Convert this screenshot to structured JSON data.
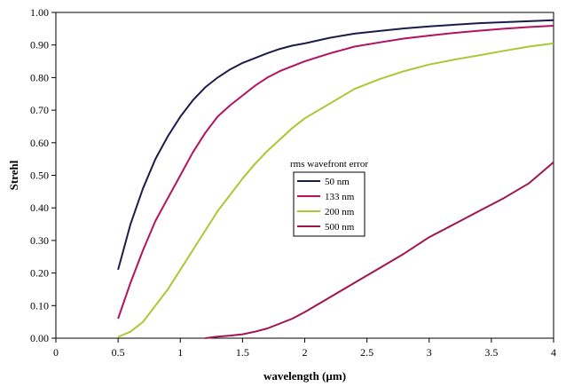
{
  "chart_data": {
    "type": "line",
    "xlabel": "wavelength (µm)",
    "ylabel": "Strehl",
    "xlim": [
      0,
      4
    ],
    "ylim": [
      0,
      1
    ],
    "xticks": [
      "0",
      "0.5",
      "1",
      "1.5",
      "2",
      "2.5",
      "3",
      "3.5",
      "4"
    ],
    "yticks": [
      "0.00",
      "0.10",
      "0.20",
      "0.30",
      "0.40",
      "0.50",
      "0.60",
      "0.70",
      "0.80",
      "0.90",
      "1.00"
    ],
    "grid": false,
    "legend": {
      "title": "rms wavefront error",
      "placement": "center"
    },
    "x": [
      0.5,
      0.6,
      0.7,
      0.8,
      0.9,
      1.0,
      1.1,
      1.2,
      1.3,
      1.4,
      1.5,
      1.6,
      1.7,
      1.8,
      1.9,
      2.0,
      2.2,
      2.4,
      2.6,
      2.8,
      3.0,
      3.2,
      3.4,
      3.6,
      3.8,
      4.0
    ],
    "series": [
      {
        "name": "50 nm",
        "color": "#1c1c4a",
        "values": [
          0.21,
          0.35,
          0.46,
          0.55,
          0.62,
          0.68,
          0.73,
          0.77,
          0.8,
          0.825,
          0.845,
          0.86,
          0.875,
          0.888,
          0.898,
          0.905,
          0.922,
          0.935,
          0.943,
          0.951,
          0.957,
          0.962,
          0.967,
          0.97,
          0.973,
          0.976
        ]
      },
      {
        "name": "133 nm",
        "color": "#b3125e",
        "values": [
          0.06,
          0.17,
          0.27,
          0.36,
          0.43,
          0.5,
          0.57,
          0.63,
          0.68,
          0.715,
          0.745,
          0.775,
          0.8,
          0.82,
          0.835,
          0.85,
          0.874,
          0.895,
          0.908,
          0.92,
          0.929,
          0.937,
          0.944,
          0.95,
          0.955,
          0.959
        ]
      },
      {
        "name": "200 nm",
        "color": "#a7c933",
        "values": [
          0.004,
          0.02,
          0.05,
          0.1,
          0.15,
          0.21,
          0.27,
          0.33,
          0.39,
          0.44,
          0.49,
          0.535,
          0.575,
          0.61,
          0.645,
          0.675,
          0.72,
          0.765,
          0.795,
          0.82,
          0.84,
          0.855,
          0.868,
          0.882,
          0.895,
          0.905
        ]
      },
      {
        "name": "500 nm",
        "color": "#a0154d",
        "values": [
          null,
          null,
          null,
          null,
          null,
          null,
          null,
          0.0,
          0.005,
          0.008,
          0.012,
          0.02,
          0.03,
          0.045,
          0.06,
          0.08,
          0.125,
          0.17,
          0.215,
          0.26,
          0.31,
          0.35,
          0.39,
          0.43,
          0.475,
          0.54
        ]
      }
    ]
  }
}
